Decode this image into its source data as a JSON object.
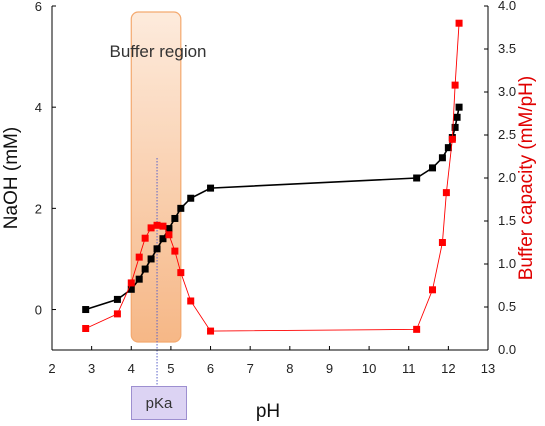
{
  "chart_data": {
    "type": "line",
    "xlabel": "pH",
    "ylabel": "NaOH (mM)",
    "y2label": "Buffer capacity (mM/pH)",
    "xlim": [
      2,
      13
    ],
    "ylim": [
      -0.8,
      6
    ],
    "y2lim": [
      0,
      4
    ],
    "xticks": [
      "2",
      "3",
      "4",
      "5",
      "6",
      "7",
      "8",
      "9",
      "10",
      "11",
      "12",
      "13"
    ],
    "yticks": [
      "0",
      "2",
      "4",
      "6"
    ],
    "y2ticks": [
      "0.0",
      "0.5",
      "1.0",
      "1.5",
      "2.0",
      "2.5",
      "3.0",
      "3.5",
      "4.0"
    ],
    "region": {
      "label": "Buffer region",
      "x": [
        4.0,
        5.25
      ],
      "color": "#f6b07a"
    },
    "pka": {
      "label": "pKa",
      "x": 4.65
    },
    "series": [
      {
        "axis": "left",
        "color": "#000000",
        "marker": "square",
        "x": [
          2.85,
          3.65,
          4.0,
          4.2,
          4.35,
          4.5,
          4.65,
          4.8,
          4.95,
          5.1,
          5.25,
          5.5,
          6.0,
          11.2,
          11.6,
          11.85,
          12.0,
          12.1,
          12.17,
          12.22,
          12.27
        ],
        "y": [
          0.0,
          0.2,
          0.4,
          0.6,
          0.8,
          1.0,
          1.2,
          1.4,
          1.6,
          1.8,
          2.0,
          2.2,
          2.4,
          2.6,
          2.8,
          3.0,
          3.2,
          3.4,
          3.6,
          3.8,
          4.0
        ]
      },
      {
        "axis": "right",
        "color": "#ff0000",
        "marker": "square",
        "x": [
          2.85,
          3.65,
          4.0,
          4.2,
          4.35,
          4.5,
          4.65,
          4.8,
          4.95,
          5.1,
          5.25,
          5.5,
          6.0,
          11.2,
          11.6,
          11.85,
          11.95,
          12.1,
          12.17,
          12.27
        ],
        "y": [
          0.25,
          0.42,
          0.78,
          1.08,
          1.3,
          1.42,
          1.45,
          1.44,
          1.34,
          1.15,
          0.9,
          0.57,
          0.22,
          0.24,
          0.7,
          1.25,
          1.83,
          2.45,
          3.08,
          3.8
        ]
      }
    ]
  }
}
